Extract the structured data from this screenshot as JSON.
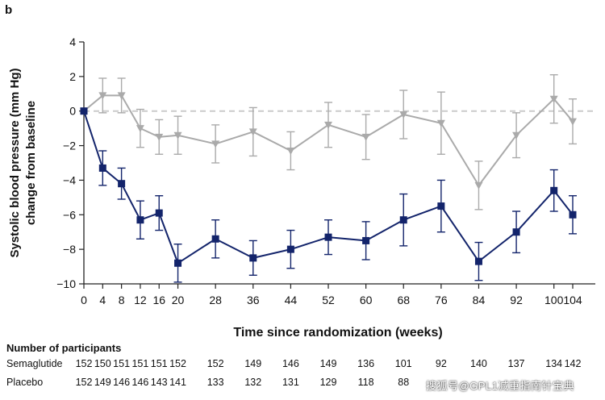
{
  "panel_label": "b",
  "chart_data": {
    "type": "line",
    "ylabel_line1": "Systolic blood pressure (mm Hg)",
    "ylabel_line2": "change from baseline",
    "xlabel": "Time since randomization (weeks)",
    "ylim": [
      -10,
      4
    ],
    "yticks": [
      4,
      2,
      0,
      -2,
      -4,
      -6,
      -8,
      -10
    ],
    "xlim": [
      0,
      104
    ],
    "xticks": [
      0,
      4,
      8,
      12,
      16,
      20,
      28,
      36,
      44,
      52,
      60,
      68,
      76,
      84,
      92,
      100,
      104
    ],
    "x": [
      0,
      4,
      8,
      12,
      16,
      20,
      28,
      36,
      44,
      52,
      60,
      68,
      76,
      84,
      92,
      100,
      104
    ],
    "reference_line": 0,
    "series": [
      {
        "name": "Semaglutide",
        "color": "#13246b",
        "marker": "square",
        "values": [
          0,
          -3.3,
          -4.2,
          -6.3,
          -5.9,
          -8.8,
          -7.4,
          -8.5,
          -8.0,
          -7.3,
          -7.5,
          -6.3,
          -5.5,
          -8.7,
          -7.0,
          -4.6,
          -6.0
        ],
        "error": [
          0,
          1.0,
          0.9,
          1.1,
          1.0,
          1.1,
          1.1,
          1.0,
          1.1,
          1.0,
          1.1,
          1.5,
          1.5,
          1.1,
          1.2,
          1.2,
          1.1
        ]
      },
      {
        "name": "Placebo",
        "color": "#aaaaaa",
        "marker": "triangle-down",
        "values": [
          0,
          0.9,
          0.9,
          -1.0,
          -1.5,
          -1.4,
          -1.9,
          -1.2,
          -2.3,
          -0.8,
          -1.5,
          -0.2,
          -0.7,
          -4.3,
          -1.4,
          0.7,
          -0.6
        ],
        "error": [
          0,
          1.0,
          1.0,
          1.1,
          1.0,
          1.1,
          1.1,
          1.4,
          1.1,
          1.3,
          1.3,
          1.4,
          1.8,
          1.4,
          1.3,
          1.4,
          1.3
        ]
      }
    ]
  },
  "participants": {
    "title": "Number of participants",
    "rows": [
      {
        "label": "Semaglutide",
        "counts": [
          "152",
          "150",
          "151",
          "151",
          "151",
          "152",
          "152",
          "149",
          "146",
          "149",
          "136",
          "101",
          "92",
          "140",
          "137",
          "134",
          "142"
        ]
      },
      {
        "label": "Placebo",
        "counts": [
          "152",
          "149",
          "146",
          "146",
          "143",
          "141",
          "133",
          "132",
          "131",
          "129",
          "118",
          "88",
          "",
          "",
          "",
          "",
          ""
        ]
      }
    ]
  },
  "watermark": "搜狐号@GPL1减重指南针宝典"
}
